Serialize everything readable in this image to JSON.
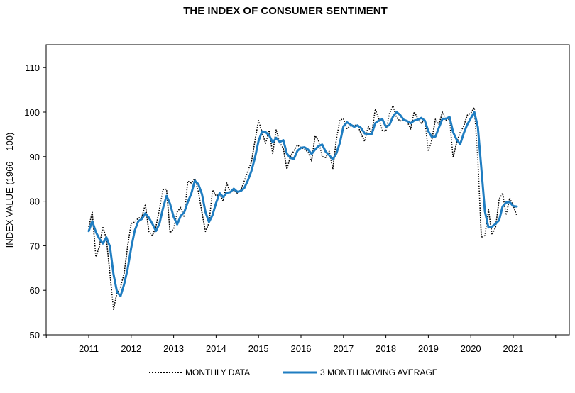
{
  "chart_data": {
    "type": "line",
    "title": "THE INDEX OF CONSUMER SENTIMENT",
    "xlabel": "",
    "ylabel": "INDEX VALUE (1966 = 100)",
    "ylim": [
      50,
      115
    ],
    "xlim": [
      2010,
      2022
    ],
    "y_ticks": [
      50,
      60,
      70,
      80,
      90,
      100,
      110
    ],
    "x_ticks": [
      2011,
      2012,
      2013,
      2014,
      2015,
      2016,
      2017,
      2018,
      2019,
      2020,
      2021
    ],
    "grid": false,
    "legend_position": "bottom",
    "series": [
      {
        "name": "MONTHLY DATA",
        "style": "dotted",
        "color": "#000000",
        "x": [
          2011.0,
          2011.083,
          2011.167,
          2011.25,
          2011.333,
          2011.417,
          2011.5,
          2011.583,
          2011.667,
          2011.75,
          2011.833,
          2011.917,
          2012.0,
          2012.083,
          2012.167,
          2012.25,
          2012.333,
          2012.417,
          2012.5,
          2012.583,
          2012.667,
          2012.75,
          2012.833,
          2012.917,
          2013.0,
          2013.083,
          2013.167,
          2013.25,
          2013.333,
          2013.417,
          2013.5,
          2013.583,
          2013.667,
          2013.75,
          2013.833,
          2013.917,
          2014.0,
          2014.083,
          2014.167,
          2014.25,
          2014.333,
          2014.417,
          2014.5,
          2014.583,
          2014.667,
          2014.75,
          2014.833,
          2014.917,
          2015.0,
          2015.083,
          2015.167,
          2015.25,
          2015.333,
          2015.417,
          2015.5,
          2015.583,
          2015.667,
          2015.75,
          2015.833,
          2015.917,
          2016.0,
          2016.083,
          2016.167,
          2016.25,
          2016.333,
          2016.417,
          2016.5,
          2016.583,
          2016.667,
          2016.75,
          2016.833,
          2016.917,
          2017.0,
          2017.083,
          2017.167,
          2017.25,
          2017.333,
          2017.417,
          2017.5,
          2017.583,
          2017.667,
          2017.75,
          2017.833,
          2017.917,
          2018.0,
          2018.083,
          2018.167,
          2018.25,
          2018.333,
          2018.417,
          2018.5,
          2018.583,
          2018.667,
          2018.75,
          2018.833,
          2018.917,
          2019.0,
          2019.083,
          2019.167,
          2019.25,
          2019.333,
          2019.417,
          2019.5,
          2019.583,
          2019.667,
          2019.75,
          2019.833,
          2019.917,
          2020.0,
          2020.083,
          2020.167,
          2020.25,
          2020.333,
          2020.417,
          2020.5,
          2020.583,
          2020.667,
          2020.75,
          2020.833,
          2020.917,
          2021.0,
          2021.083
        ],
        "values": [
          74.2,
          77.5,
          67.5,
          69.8,
          74.3,
          71.5,
          63.7,
          55.7,
          59.5,
          60.8,
          63.7,
          69.9,
          75.0,
          75.3,
          76.2,
          76.4,
          79.3,
          73.2,
          72.3,
          74.3,
          78.3,
          82.6,
          82.7,
          72.9,
          73.8,
          77.6,
          78.6,
          76.4,
          84.5,
          84.1,
          85.1,
          82.1,
          77.5,
          73.2,
          75.1,
          82.5,
          81.2,
          81.6,
          80.0,
          84.1,
          81.9,
          82.5,
          81.8,
          82.5,
          84.6,
          86.9,
          88.8,
          93.6,
          98.1,
          95.4,
          93.0,
          95.9,
          90.7,
          96.1,
          93.1,
          91.9,
          87.2,
          90.0,
          91.3,
          92.6,
          92.0,
          91.7,
          91.0,
          89.0,
          94.7,
          93.5,
          90.0,
          89.8,
          91.2,
          87.2,
          93.8,
          98.2,
          98.5,
          96.3,
          96.9,
          97.0,
          97.1,
          95.1,
          93.4,
          96.8,
          95.1,
          100.7,
          98.5,
          95.9,
          95.7,
          99.7,
          101.4,
          98.8,
          98.0,
          98.2,
          97.9,
          96.2,
          100.1,
          98.6,
          97.5,
          98.3,
          91.2,
          93.8,
          98.4,
          97.2,
          100.0,
          98.2,
          98.4,
          89.8,
          93.2,
          95.5,
          96.8,
          99.3,
          99.8,
          101.0,
          89.1,
          71.8,
          72.3,
          78.1,
          72.5,
          74.1,
          80.4,
          81.8,
          76.9,
          80.7,
          79.0,
          76.8
        ]
      },
      {
        "name": "3 MONTH MOVING AVERAGE",
        "style": "solid",
        "color": "#1f7dc1",
        "x": [
          2011.0,
          2011.083,
          2011.167,
          2011.25,
          2011.333,
          2011.417,
          2011.5,
          2011.583,
          2011.667,
          2011.75,
          2011.833,
          2011.917,
          2012.0,
          2012.083,
          2012.167,
          2012.25,
          2012.333,
          2012.417,
          2012.5,
          2012.583,
          2012.667,
          2012.75,
          2012.833,
          2012.917,
          2013.0,
          2013.083,
          2013.167,
          2013.25,
          2013.333,
          2013.417,
          2013.5,
          2013.583,
          2013.667,
          2013.75,
          2013.833,
          2013.917,
          2014.0,
          2014.083,
          2014.167,
          2014.25,
          2014.333,
          2014.417,
          2014.5,
          2014.583,
          2014.667,
          2014.75,
          2014.833,
          2014.917,
          2015.0,
          2015.083,
          2015.167,
          2015.25,
          2015.333,
          2015.417,
          2015.5,
          2015.583,
          2015.667,
          2015.75,
          2015.833,
          2015.917,
          2016.0,
          2016.083,
          2016.167,
          2016.25,
          2016.333,
          2016.417,
          2016.5,
          2016.583,
          2016.667,
          2016.75,
          2016.833,
          2016.917,
          2017.0,
          2017.083,
          2017.167,
          2017.25,
          2017.333,
          2017.417,
          2017.5,
          2017.583,
          2017.667,
          2017.75,
          2017.833,
          2017.917,
          2018.0,
          2018.083,
          2018.167,
          2018.25,
          2018.333,
          2018.417,
          2018.5,
          2018.583,
          2018.667,
          2018.75,
          2018.833,
          2018.917,
          2019.0,
          2019.083,
          2019.167,
          2019.25,
          2019.333,
          2019.417,
          2019.5,
          2019.583,
          2019.667,
          2019.75,
          2019.833,
          2019.917,
          2020.0,
          2020.083,
          2020.167,
          2020.25,
          2020.333,
          2020.417,
          2020.5,
          2020.583,
          2020.667,
          2020.75,
          2020.833,
          2020.917,
          2021.0,
          2021.083
        ],
        "values": [
          73.3,
          75.5,
          73.1,
          71.6,
          70.5,
          71.9,
          69.8,
          63.6,
          59.6,
          58.7,
          61.3,
          64.8,
          69.5,
          73.4,
          75.5,
          76.0,
          77.3,
          76.3,
          74.9,
          73.3,
          75.0,
          78.4,
          81.2,
          79.4,
          76.5,
          74.8,
          76.7,
          77.5,
          79.8,
          81.7,
          84.6,
          83.8,
          81.6,
          77.6,
          75.3,
          76.9,
          79.6,
          81.8,
          80.9,
          81.9,
          82.0,
          82.8,
          82.1,
          82.3,
          83.0,
          84.7,
          86.8,
          89.8,
          93.5,
          95.7,
          95.5,
          94.8,
          93.2,
          94.2,
          93.3,
          93.7,
          90.7,
          89.7,
          89.5,
          91.3,
          92.0,
          92.1,
          91.6,
          90.6,
          91.6,
          92.4,
          92.7,
          91.1,
          90.3,
          89.4,
          90.7,
          93.1,
          96.8,
          97.7,
          97.2,
          96.7,
          97.0,
          96.4,
          95.2,
          95.1,
          95.1,
          97.5,
          98.1,
          98.4,
          96.7,
          97.1,
          99.0,
          100.0,
          99.4,
          98.3,
          98.0,
          97.5,
          98.1,
          98.3,
          98.7,
          98.1,
          95.7,
          94.4,
          94.5,
          96.5,
          98.5,
          98.5,
          98.9,
          95.5,
          93.8,
          92.8,
          95.2,
          97.2,
          98.6,
          100.0,
          96.6,
          87.3,
          77.7,
          74.1,
          74.3,
          74.9,
          75.7,
          78.8,
          79.7,
          79.8,
          78.9,
          78.8
        ]
      }
    ]
  }
}
